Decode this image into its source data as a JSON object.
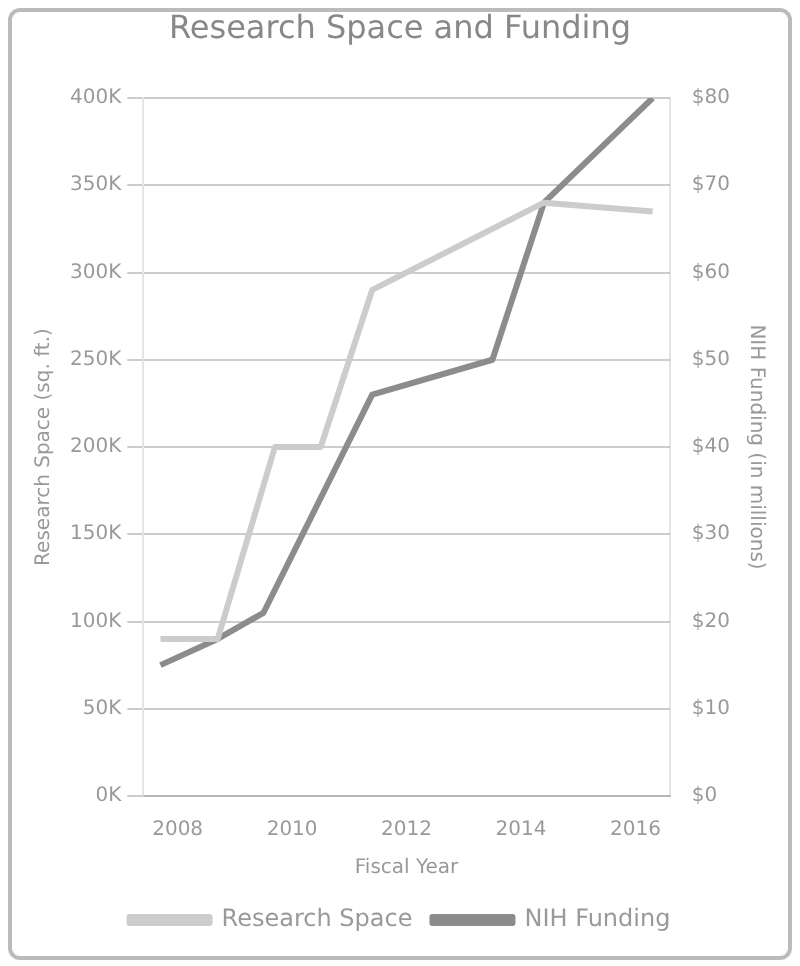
{
  "chart_data": {
    "type": "line",
    "title": "Research Space and Funding",
    "xlabel": "Fiscal Year",
    "ylabel": "Research Space (sq. ft.)",
    "y2label": "NIH Funding (in millions)",
    "series": [
      {
        "name": "Research Space",
        "color": "#cccccc",
        "x": [
          2007.7,
          2008.7,
          2009.7,
          2010.5,
          2011.4,
          2014.4,
          2016.3
        ],
        "values": [
          90,
          90,
          200,
          200,
          290,
          340,
          335
        ]
      },
      {
        "name": "NIH Funding",
        "color": "#8c8c8c",
        "axis": "y2",
        "x": [
          2007.7,
          2008.7,
          2009.5,
          2011.4,
          2013.5,
          2014.4,
          2016.3
        ],
        "values": [
          15,
          18,
          21,
          46,
          50,
          68,
          80
        ]
      }
    ],
    "xlim": [
      2007.4,
      2016.6
    ],
    "xticks": [
      2008,
      2010,
      2012,
      2014,
      2016
    ],
    "ylim": [
      0,
      400
    ],
    "yticks": [
      {
        "value": 0,
        "label": "0K"
      },
      {
        "value": 50,
        "label": "50K"
      },
      {
        "value": 100,
        "label": "100K"
      },
      {
        "value": 150,
        "label": "150K"
      },
      {
        "value": 200,
        "label": "200K"
      },
      {
        "value": 250,
        "label": "250K"
      },
      {
        "value": 300,
        "label": "300K"
      },
      {
        "value": 350,
        "label": "350K"
      },
      {
        "value": 400,
        "label": "400K"
      }
    ],
    "y2lim": [
      0,
      80
    ],
    "y2ticks": [
      {
        "value": 0,
        "label": "$0"
      },
      {
        "value": 10,
        "label": "$10"
      },
      {
        "value": 20,
        "label": "$20"
      },
      {
        "value": 30,
        "label": "$30"
      },
      {
        "value": 40,
        "label": "$40"
      },
      {
        "value": 50,
        "label": "$50"
      },
      {
        "value": 60,
        "label": "$60"
      },
      {
        "value": 70,
        "label": "$70"
      },
      {
        "value": 80,
        "label": "$80"
      }
    ],
    "grid": "y",
    "legend": "bottom",
    "marker": "none",
    "line_style": "solid"
  }
}
